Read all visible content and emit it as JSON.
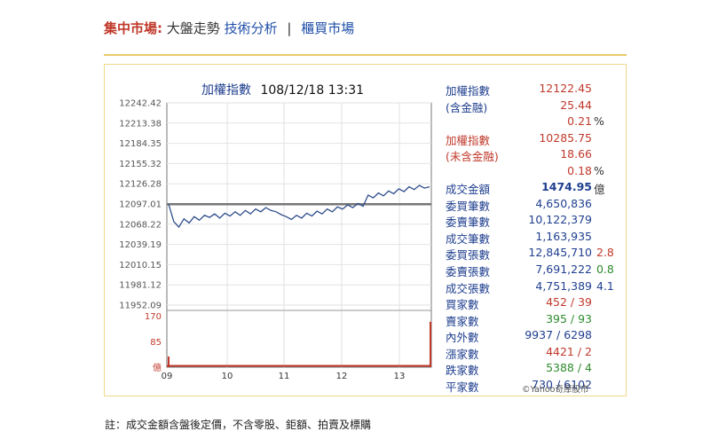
{
  "nav": {
    "market": "集中市場:",
    "overview": "大盤走勢",
    "technical": "技術分析",
    "separator": "|",
    "otc": "櫃買市場"
  },
  "chart_title": {
    "name": "加權指數",
    "datetime": "108/12/18 13:31"
  },
  "chart_data": {
    "type": "line",
    "title": "加權指數 108/12/18 13:31",
    "y_ticks": [
      "12242.42",
      "12213.38",
      "12184.35",
      "12155.32",
      "12126.28",
      "12097.01",
      "12068.22",
      "12039.19",
      "12010.15",
      "11981.12",
      "11952.09"
    ],
    "ylim": [
      11952.09,
      12242.42
    ],
    "reference_line": 12097.01,
    "x_ticks": [
      "09",
      "10",
      "11",
      "12",
      "13"
    ],
    "series": [
      {
        "values": [
          12097,
          12072,
          12064,
          12076,
          12070,
          12079,
          12074,
          12081,
          12078,
          12083,
          12077,
          12084,
          12080,
          12086,
          12081,
          12088,
          12083,
          12090,
          12086,
          12092,
          12088,
          12086,
          12082,
          12079,
          12075,
          12081,
          12077,
          12084,
          12080,
          12087,
          12083,
          12090,
          12086,
          12093,
          12090,
          12096,
          12092,
          12098,
          12094,
          12110,
          12106,
          12113,
          12109,
          12116,
          12112,
          12119,
          12115,
          12122,
          12118,
          12124,
          12120,
          12122
        ]
      }
    ],
    "volume": {
      "ticks": [
        "170",
        "85",
        "億"
      ],
      "ylim": [
        0,
        170
      ],
      "last_bar": 150
    }
  },
  "stats": {
    "index_label": "加權指數",
    "index_value": "12122.45",
    "incl_fin_label": "(含金融)",
    "incl_fin_change": "25.44",
    "incl_fin_pct": "0.21",
    "pct_sign": "%",
    "ex_fin_index_label": "加權指數",
    "ex_fin_index_value": "10285.75",
    "ex_fin_label": "(未含金融)",
    "ex_fin_change": "18.66",
    "ex_fin_pct": "0.18",
    "pct_sign2": "%",
    "turnover_label": "成交金額",
    "turnover_value": "1474.95",
    "turnover_unit": "億",
    "bid_orders_label": "委買筆數",
    "bid_orders": "4,650,836",
    "ask_orders_label": "委賣筆數",
    "ask_orders": "10,122,379",
    "trades_label": "成交筆數",
    "trades": "1,163,935",
    "bid_lots_label": "委買張數",
    "bid_lots": "12,845,710",
    "bid_lots_ratio": "2.8",
    "ask_lots_label": "委賣張數",
    "ask_lots": "7,691,222",
    "ask_lots_ratio": "0.8",
    "volume_lots_label": "成交張數",
    "volume_lots": "4,751,389",
    "volume_lots_ratio": "4.1",
    "buyers_label": "買家數",
    "buyers": "452 / 39",
    "sellers_label": "賣家數",
    "sellers": "395 / 93",
    "inout_label": "內外數",
    "inout": "9937 / 6298",
    "up_label": "漲家數",
    "up": "4421 / 2",
    "down_label": "跌家數",
    "down": "5388 / 4",
    "flat_label": "平家數",
    "flat": "730 / 6102"
  },
  "credit": "©Yahoo奇摩股市",
  "footnote": "註：成交金額含盤後定價，不含零股、鉅額、拍賣及標購"
}
